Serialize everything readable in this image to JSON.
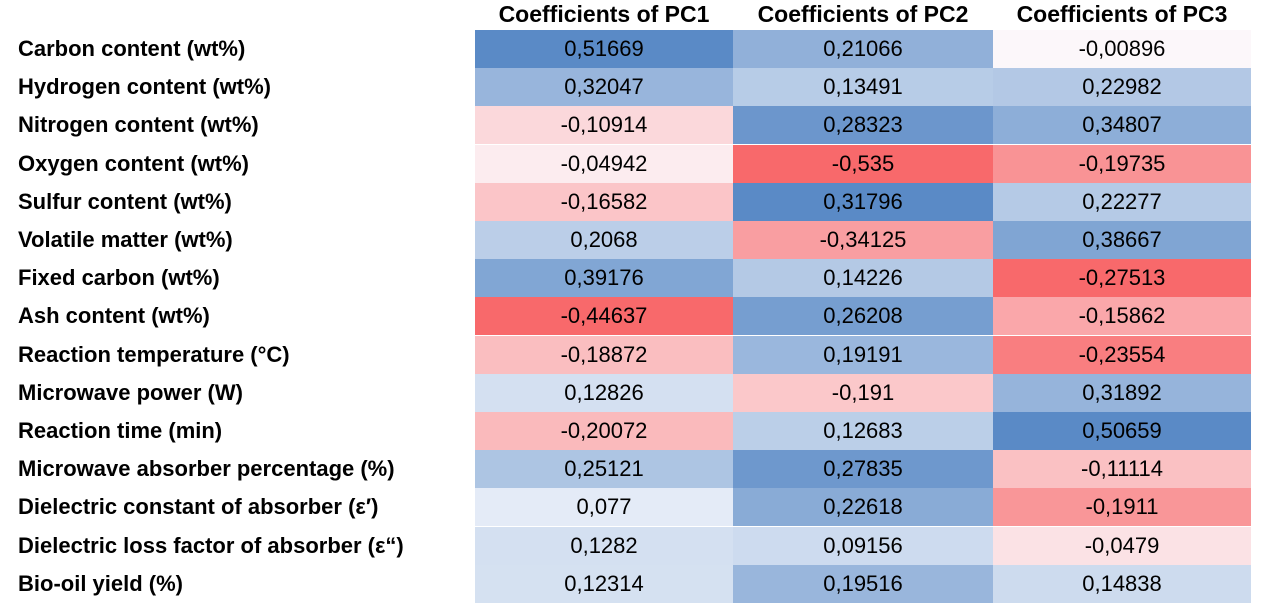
{
  "chart_data": {
    "type": "heatmap",
    "columns": [
      "Coefficients of PC1",
      "Coefficients of PC2",
      "Coefficients of PC3"
    ],
    "rows": [
      {
        "label": "Carbon content (wt%)",
        "values": [
          "0,51669",
          "0,21066",
          "-0,00896"
        ]
      },
      {
        "label": "Hydrogen content (wt%)",
        "values": [
          "0,32047",
          "0,13491",
          "0,22982"
        ]
      },
      {
        "label": "Nitrogen content (wt%)",
        "values": [
          "-0,10914",
          "0,28323",
          "0,34807"
        ]
      },
      {
        "label": "Oxygen content (wt%)",
        "values": [
          "-0,04942",
          "-0,535",
          "-0,19735"
        ]
      },
      {
        "label": "Sulfur content (wt%)",
        "values": [
          "-0,16582",
          "0,31796",
          "0,22277"
        ]
      },
      {
        "label": "Volatile matter (wt%)",
        "values": [
          "0,2068",
          "-0,34125",
          "0,38667"
        ]
      },
      {
        "label": "Fixed carbon (wt%)",
        "values": [
          "0,39176",
          "0,14226",
          "-0,27513"
        ]
      },
      {
        "label": "Ash content (wt%)",
        "values": [
          "-0,44637",
          "0,26208",
          "-0,15862"
        ]
      },
      {
        "label": "Reaction temperature (°C)",
        "values": [
          "-0,18872",
          "0,19191",
          "-0,23554"
        ]
      },
      {
        "label": "Microwave power (W)",
        "values": [
          "0,12826",
          "-0,191",
          "0,31892"
        ]
      },
      {
        "label": "Reaction time (min)",
        "values": [
          "-0,20072",
          "0,12683",
          "0,50659"
        ]
      },
      {
        "label": "Microwave absorber percentage (%)",
        "values": [
          "0,25121",
          "0,27835",
          "-0,11114"
        ]
      },
      {
        "label": "Dielectric constant of absorber (ε′)",
        "values": [
          "0,077",
          "0,22618",
          "-0,1911"
        ]
      },
      {
        "label": "Dielectric loss factor of absorber (ε“)",
        "values": [
          "0,1282",
          "0,09156",
          "-0,0479"
        ]
      },
      {
        "label": "Bio-oil yield (%)",
        "values": [
          "0,12314",
          "0,19516",
          "0,14838"
        ]
      }
    ],
    "color_scale": {
      "negative": "#F8696B",
      "neutral": "#FCFCFF",
      "positive": "#5A8AC6"
    }
  }
}
